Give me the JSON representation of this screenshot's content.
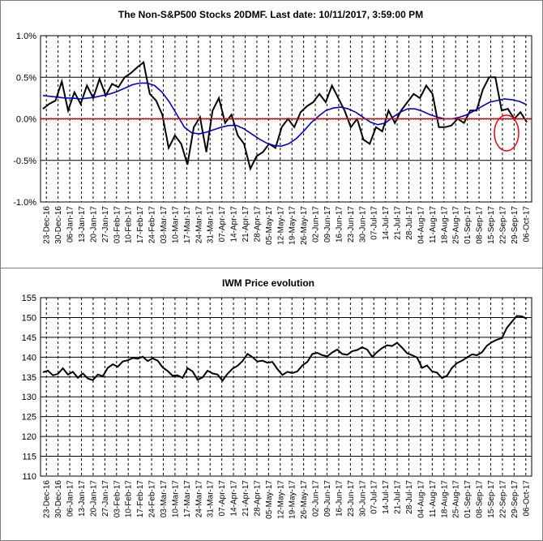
{
  "chart_data": [
    {
      "type": "line",
      "title": "The Non-S&P500 Stocks 20DMF. Last date: 10/11/2017, 3:59:00 PM",
      "ylim": [
        -0.01,
        0.01
      ],
      "yticks": [
        "1.0%",
        "0.5%",
        "0.0%",
        "-0.5%",
        "-1.0%"
      ],
      "grid": true,
      "x_labels": [
        "23-Dec-16",
        "30-Dec-16",
        "06-Jan-17",
        "13-Jan-17",
        "20-Jan-17",
        "27-Jan-17",
        "03-Feb-17",
        "10-Feb-17",
        "17-Feb-17",
        "24-Feb-17",
        "03-Mar-17",
        "10-Mar-17",
        "17-Mar-17",
        "24-Mar-17",
        "31-Mar-17",
        "07-Apr-17",
        "14-Apr-17",
        "21-Apr-17",
        "28-Apr-17",
        "05-May-17",
        "12-May-17",
        "19-May-17",
        "26-May-17",
        "02-Jun-17",
        "09-Jun-17",
        "16-Jun-17",
        "23-Jun-17",
        "30-Jun-17",
        "07-Jul-17",
        "14-Jul-17",
        "21-Jul-17",
        "28-Jul-17",
        "04-Aug-17",
        "11-Aug-17",
        "18-Aug-17",
        "25-Aug-17",
        "01-Sep-17",
        "08-Sep-17",
        "15-Sep-17",
        "22-Sep-17",
        "29-Sep-17",
        "06-Oct-17"
      ],
      "series": [
        {
          "color": "#000000",
          "values": [
            0.0012,
            0.0018,
            0.0022,
            0.0045,
            0.001,
            0.0032,
            0.0018,
            0.004,
            0.0025,
            0.0048,
            0.0028,
            0.0042,
            0.0038,
            0.005,
            0.0055,
            0.0062,
            0.0068,
            0.003,
            0.0022,
            0.0005,
            -0.0035,
            -0.002,
            -0.003,
            -0.0055,
            -0.001,
            0.0002,
            -0.004,
            0.001,
            0.0025,
            -0.0005,
            0.0005,
            -0.002,
            -0.003,
            -0.006,
            -0.0045,
            -0.004,
            -0.003,
            -0.0035,
            -0.001,
            0.0,
            -0.001,
            0.0008,
            0.0015,
            0.002,
            0.003,
            0.002,
            0.004,
            0.0025,
            0.001,
            -0.001,
            0.0,
            -0.0025,
            -0.003,
            -0.001,
            -0.0015,
            0.001,
            -0.0005,
            0.001,
            0.002,
            0.003,
            0.0025,
            0.004,
            0.003,
            -0.001,
            -0.001,
            -0.0008,
            0.0,
            -0.0005,
            0.001,
            0.001,
            0.0035,
            0.005,
            0.005,
            0.001,
            0.0012,
            0.0,
            0.0008,
            -0.0004
          ]
        },
        {
          "color": "#0000cc",
          "values": [
            0.0028,
            0.0027,
            0.0026,
            0.0025,
            0.0025,
            0.0024,
            0.0025,
            0.0026,
            0.0028,
            0.003,
            0.0033,
            0.0037,
            0.0041,
            0.0043,
            0.0043,
            0.004,
            0.0032,
            0.002,
            0.0005,
            -0.001,
            -0.0017,
            -0.0018,
            -0.0016,
            -0.0013,
            -0.001,
            -0.0008,
            -0.0008,
            -0.0012,
            -0.0018,
            -0.0024,
            -0.0029,
            -0.0032,
            -0.0033,
            -0.003,
            -0.0024,
            -0.0015,
            -0.0005,
            0.0003,
            0.001,
            0.0013,
            0.0014,
            0.0012,
            0.0008,
            0.0002,
            -0.0004,
            -0.0007,
            -0.0005,
            0.0002,
            0.0008,
            0.0012,
            0.0012,
            0.0009,
            0.0005,
            0.0002,
            0.0,
            0.0,
            0.0002,
            0.0005,
            0.001,
            0.0015,
            0.002,
            0.0022,
            0.0024,
            0.0023,
            0.0021,
            0.0017
          ]
        },
        {
          "color": "#ff0000",
          "values": [
            0,
            0
          ]
        }
      ]
    },
    {
      "type": "line",
      "title": "IWM Price evolution",
      "ylim": [
        110,
        155
      ],
      "yticks": [
        "155",
        "150",
        "145",
        "140",
        "135",
        "130",
        "125",
        "120",
        "115",
        "110"
      ],
      "grid": true,
      "x_labels": [
        "23-Dec-16",
        "30-Dec-16",
        "06-Jan-17",
        "13-Jan-17",
        "20-Jan-17",
        "27-Jan-17",
        "03-Feb-17",
        "10-Feb-17",
        "17-Feb-17",
        "24-Feb-17",
        "03-Mar-17",
        "10-Mar-17",
        "17-Mar-17",
        "24-Mar-17",
        "31-Mar-17",
        "07-Apr-17",
        "14-Apr-17",
        "21-Apr-17",
        "28-Apr-17",
        "05-May-17",
        "12-May-17",
        "19-May-17",
        "26-May-17",
        "02-Jun-17",
        "09-Jun-17",
        "16-Jun-17",
        "23-Jun-17",
        "30-Jun-17",
        "07-Jul-17",
        "14-Jul-17",
        "21-Jul-17",
        "28-Jul-17",
        "04-Aug-17",
        "11-Aug-17",
        "18-Aug-17",
        "25-Aug-17",
        "01-Sep-17",
        "08-Sep-17",
        "15-Sep-17",
        "22-Sep-17",
        "29-Sep-17",
        "06-Oct-17"
      ],
      "series": [
        {
          "color": "#000000",
          "values": [
            136.2,
            136.6,
            135.4,
            135.8,
            137.2,
            135.6,
            136.3,
            134.8,
            135.9,
            134.6,
            134.2,
            135.6,
            135.2,
            137.3,
            138.2,
            137.6,
            138.9,
            139.2,
            139.8,
            139.6,
            140.1,
            139.0,
            139.7,
            139.1,
            137.4,
            136.5,
            135.3,
            135.4,
            134.8,
            137.2,
            136.4,
            134.3,
            134.9,
            136.6,
            135.9,
            135.6,
            134.1,
            135.8,
            137.1,
            137.8,
            139.0,
            140.8,
            140.0,
            138.9,
            139.1,
            138.6,
            138.8,
            137.0,
            135.5,
            136.3,
            136.0,
            136.4,
            137.9,
            138.8,
            140.8,
            141.1,
            140.5,
            140.2,
            141.2,
            141.9,
            140.8,
            140.6,
            141.5,
            141.8,
            142.5,
            141.9,
            140.1,
            141.3,
            142.3,
            143.0,
            142.8,
            143.6,
            142.4,
            141.0,
            140.5,
            139.9,
            137.3,
            137.9,
            136.4,
            136.1,
            134.7,
            135.3,
            137.3,
            138.5,
            139.1,
            139.9,
            140.7,
            140.5,
            141.2,
            142.9,
            143.8,
            144.4,
            144.8,
            147.4,
            148.9,
            150.4,
            150.3,
            149.7
          ]
        }
      ]
    }
  ]
}
